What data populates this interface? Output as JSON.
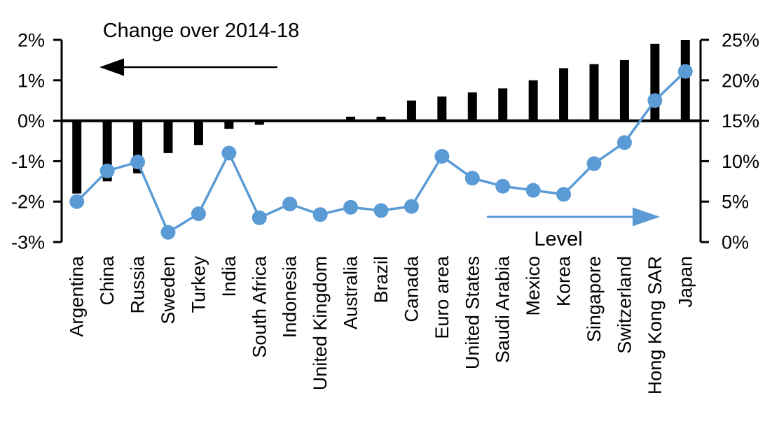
{
  "chart_data": {
    "type": "bar",
    "subtype": "combo-bar-line-dual-axis",
    "title": "",
    "categories": [
      "Argentina",
      "China",
      "Russia",
      "Sweden",
      "Turkey",
      "India",
      "South Africa",
      "Indonesia",
      "United Kingdom",
      "Australia",
      "Brazil",
      "Canada",
      "Euro area",
      "United States",
      "Saudi Arabia",
      "Mexico",
      "Korea",
      "Singapore",
      "Switzerland",
      "Hong Kong SAR",
      "Japan"
    ],
    "series": [
      {
        "name": "Change over 2014-18",
        "type": "bar",
        "axis": "left",
        "color": "#000000",
        "values": [
          -1.8,
          -1.5,
          -1.3,
          -0.8,
          -0.6,
          -0.2,
          -0.1,
          0,
          0,
          0.1,
          0.1,
          0.5,
          0.6,
          0.7,
          0.8,
          1.0,
          1.3,
          1.4,
          1.5,
          1.9,
          2.0
        ]
      },
      {
        "name": "Level",
        "type": "line",
        "axis": "right",
        "color": "#5b9bd5",
        "values": [
          5.0,
          8.8,
          9.9,
          1.2,
          3.5,
          11.0,
          3.0,
          4.7,
          3.4,
          4.3,
          3.9,
          4.4,
          10.6,
          7.9,
          6.9,
          6.4,
          5.9,
          9.7,
          12.3,
          17.5,
          21.1
        ]
      }
    ],
    "left_axis": {
      "min": -3,
      "max": 2,
      "tick_labels": [
        "2%",
        "1%",
        "0%",
        "-1%",
        "-2%",
        "-3%"
      ],
      "tick_values": [
        2,
        1,
        0,
        -1,
        -2,
        -3
      ]
    },
    "right_axis": {
      "min": 0,
      "max": 25,
      "tick_labels": [
        "25%",
        "20%",
        "15%",
        "10%",
        "5%",
        "0%"
      ],
      "tick_values": [
        25,
        20,
        15,
        10,
        5,
        0
      ]
    },
    "annotations": {
      "bar_label": "Change over 2014-18",
      "line_label": "Level",
      "bar_arrow_direction": "left",
      "line_arrow_direction": "right"
    },
    "layout_hints": {
      "grid": false,
      "legend": "in-plot text with arrows",
      "category_labels": "rotated 90deg"
    }
  }
}
